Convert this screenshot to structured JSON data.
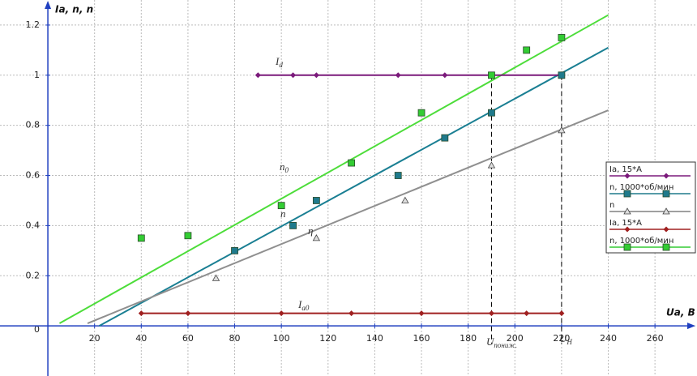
{
  "chart_data": {
    "type": "scatter",
    "x_label": "Ua, B",
    "y_label": "Ia, n, n",
    "xlim": [
      -20.5,
      278
    ],
    "ylim": [
      -0.2,
      1.3
    ],
    "xticks": [
      20,
      40,
      60,
      80,
      100,
      120,
      140,
      160,
      180,
      200,
      220,
      240,
      260
    ],
    "yticks": [
      0,
      0.2,
      0.4,
      0.6,
      0.8,
      1,
      1.2
    ],
    "grid": true,
    "legend": "right",
    "series": [
      {
        "name": "Ia, 15*A",
        "color": "#7b1a7b",
        "marker": "diamond",
        "x": [
          90,
          105,
          115,
          150,
          170,
          190,
          220
        ],
        "values": [
          1,
          1,
          1,
          1,
          1,
          1,
          1
        ]
      },
      {
        "name": "n, 1000*об/мин",
        "color": "#1f7a8c",
        "marker": "square",
        "x": [
          80,
          105,
          115,
          150,
          170,
          190,
          220
        ],
        "values": [
          0.3,
          0.4,
          0.5,
          0.6,
          0.75,
          0.85,
          1.0
        ]
      },
      {
        "name": "n",
        "color": "#808080",
        "marker": "triangle",
        "x": [
          72,
          115,
          153,
          190,
          220
        ],
        "values": [
          0.19,
          0.35,
          0.5,
          0.64,
          0.78
        ]
      },
      {
        "name": "Ia, 15*A",
        "color": "#a02020",
        "marker": "diamond",
        "x": [
          40,
          60,
          100,
          130,
          160,
          190,
          205,
          220
        ],
        "values": [
          0.05,
          0.05,
          0.05,
          0.05,
          0.05,
          0.05,
          0.05,
          0.05
        ]
      },
      {
        "name": "n, 1000*об/мин",
        "color": "#33cc33",
        "marker": "square",
        "x": [
          40,
          60,
          100,
          130,
          160,
          190,
          205,
          220
        ],
        "values": [
          0.35,
          0.36,
          0.48,
          0.65,
          0.85,
          1.0,
          1.1,
          1.15
        ]
      }
    ],
    "trendlines": [
      {
        "color": "#4ddd3a",
        "x": [
          5,
          240
        ],
        "values": [
          0.01,
          1.24
        ]
      },
      {
        "color": "#1a7f93",
        "x": [
          22,
          240
        ],
        "values": [
          0,
          1.11
        ]
      },
      {
        "color": "#8f8f8f",
        "x": [
          17,
          240
        ],
        "values": [
          0.01,
          0.86
        ]
      }
    ],
    "reference_lines": [
      {
        "x": 190,
        "y": 1
      },
      {
        "x": 220,
        "y": 1
      }
    ],
    "annotations": [
      {
        "text": "I",
        "sub": "d"
      },
      {
        "text": "n",
        "sub": "0"
      },
      {
        "text": "n"
      },
      {
        "text": "η"
      },
      {
        "text": "I",
        "sub": "a0"
      },
      {
        "text": "U",
        "sub": "пониж."
      },
      {
        "text": "U",
        "sub": "H"
      }
    ]
  }
}
